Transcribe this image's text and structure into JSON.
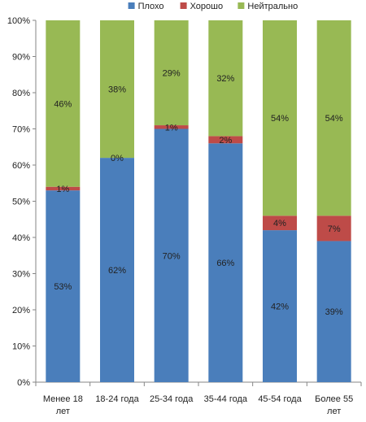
{
  "chart_data": {
    "type": "bar",
    "stacked": "percent",
    "title": "",
    "xlabel": "",
    "ylabel": "",
    "categories": [
      "Менее 18 лет",
      "18-24 года",
      "25-34 года",
      "35-44 года",
      "45-54 года",
      "Более 55 лет"
    ],
    "series": [
      {
        "name": "Плохо",
        "color": "#4a7ebb",
        "values": [
          53,
          62,
          70,
          66,
          42,
          39
        ],
        "labels": [
          "53%",
          "62%",
          "70%",
          "66%",
          "42%",
          "39%"
        ]
      },
      {
        "name": "Хорошо",
        "color": "#be4b48",
        "values": [
          1,
          0,
          1,
          2,
          4,
          7
        ],
        "labels": [
          "1%",
          "0%",
          "1%",
          "2%",
          "4%",
          "7%"
        ]
      },
      {
        "name": "Нейтрально",
        "color": "#98b954",
        "values": [
          46,
          38,
          29,
          32,
          54,
          54
        ],
        "labels": [
          "46%",
          "38%",
          "29%",
          "32%",
          "54%",
          "54%"
        ]
      }
    ],
    "ylim": [
      0,
      100
    ],
    "yticks": [
      "0%",
      "10%",
      "20%",
      "30%",
      "40%",
      "50%",
      "60%",
      "70%",
      "80%",
      "90%",
      "100%"
    ],
    "legend": "top",
    "grid": false
  }
}
